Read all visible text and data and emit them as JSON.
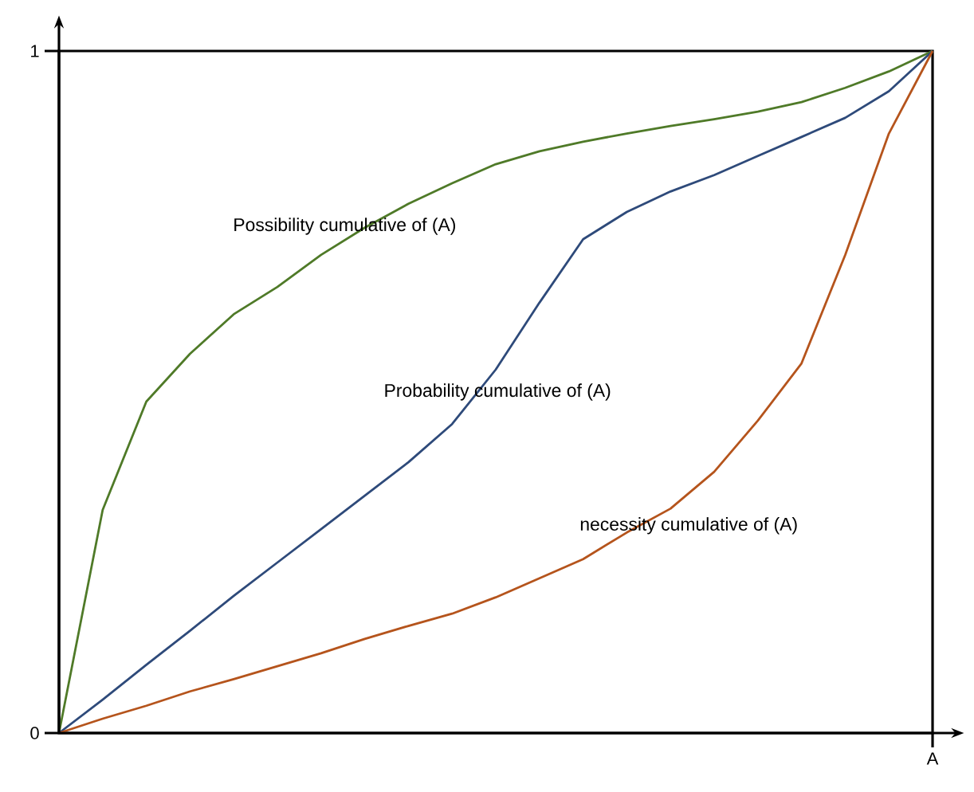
{
  "chart_data": {
    "type": "line",
    "categories": [
      null,
      null,
      null,
      null,
      null,
      null,
      null,
      null,
      null,
      null,
      null,
      null,
      null,
      null,
      null,
      null,
      null,
      null,
      null,
      null,
      "A"
    ],
    "ylim": [
      0,
      1
    ],
    "yticks": [
      0,
      1
    ],
    "legend": false,
    "marker": "none",
    "line_style": "solid",
    "series": [
      {
        "name": "Possibility cumulative of (A)",
        "color": "#4f7a28",
        "values": [
          0,
          0.327,
          0.486,
          0.556,
          0.614,
          0.654,
          0.701,
          0.741,
          0.776,
          0.806,
          0.834,
          0.853,
          0.867,
          0.879,
          0.89,
          0.9,
          0.911,
          0.925,
          0.946,
          0.97,
          1
        ]
      },
      {
        "name": "Probability cumulative of (A)",
        "color": "#2e4a7a",
        "values": [
          0,
          0.049,
          0.1,
          0.15,
          0.201,
          0.25,
          0.299,
          0.348,
          0.397,
          0.453,
          0.533,
          0.631,
          0.724,
          0.764,
          0.794,
          0.818,
          0.846,
          0.874,
          0.902,
          0.941,
          1
        ]
      },
      {
        "name": "necessity cumulative of (A)",
        "color": "#b5541c",
        "values": [
          0,
          0.021,
          0.04,
          0.061,
          0.079,
          0.098,
          0.117,
          0.138,
          0.157,
          0.175,
          0.199,
          0.227,
          0.255,
          0.294,
          0.329,
          0.383,
          0.458,
          0.542,
          0.701,
          0.879,
          1
        ]
      }
    ]
  }
}
